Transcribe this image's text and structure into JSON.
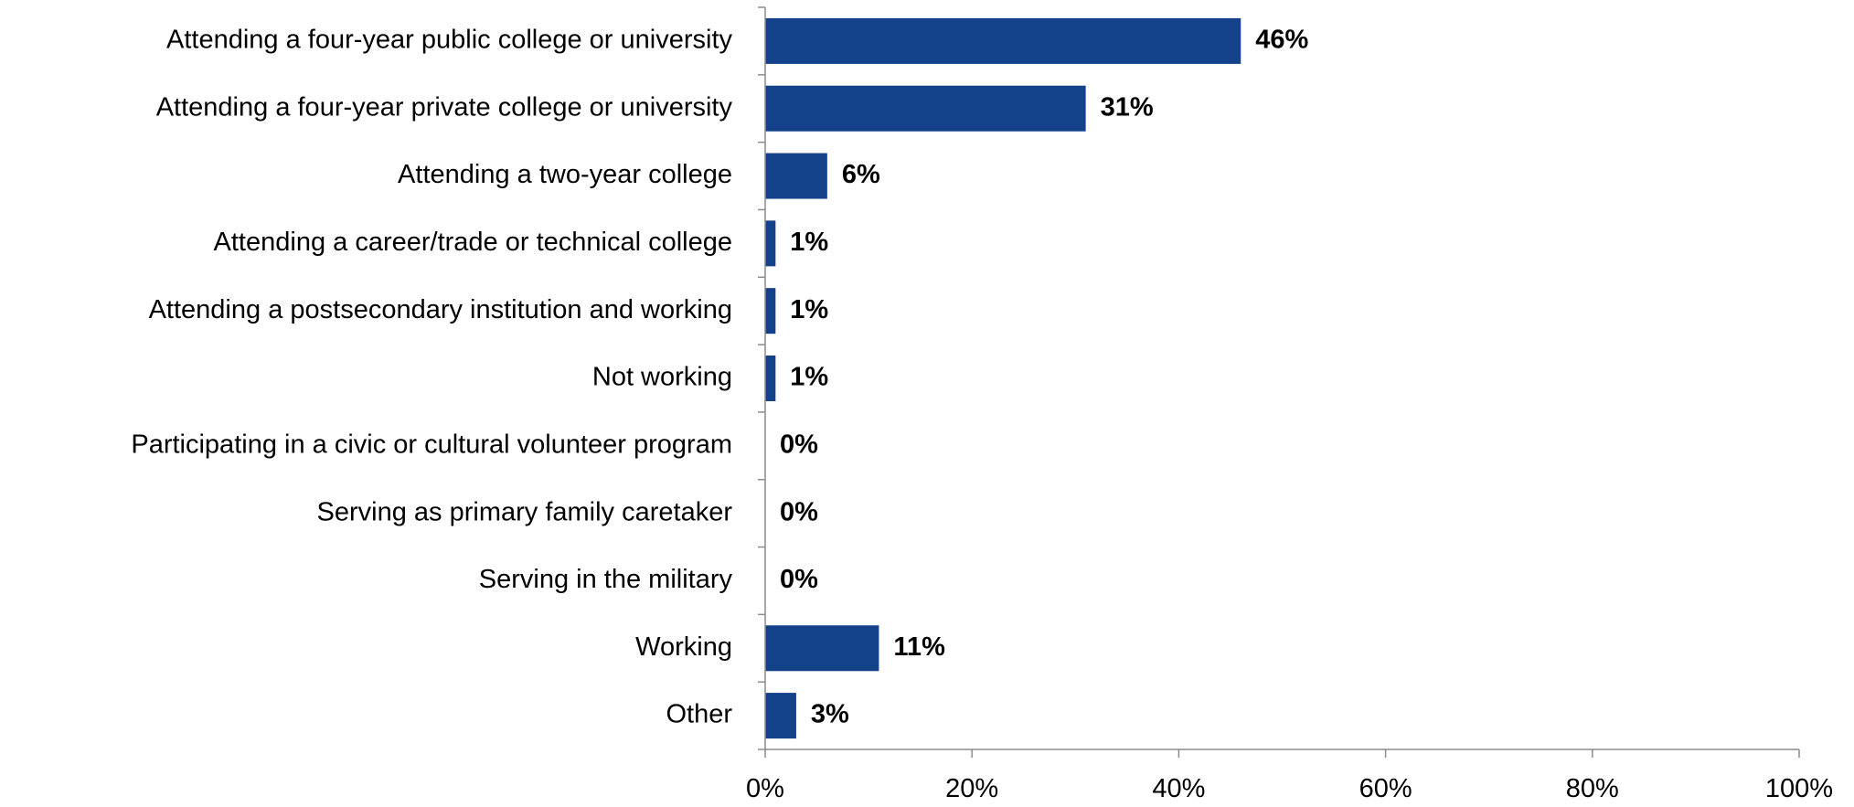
{
  "chart_data": {
    "type": "bar",
    "orientation": "horizontal",
    "categories": [
      "Attending a four-year public college or university",
      "Attending a four-year private college or university",
      "Attending a two-year college",
      "Attending a career/trade or technical college",
      "Attending a postsecondary institution and working",
      "Not working",
      "Participating in a civic or cultural volunteer program",
      "Serving as primary family caretaker",
      "Serving in the military",
      "Working",
      "Other"
    ],
    "values": [
      46,
      31,
      6,
      1,
      1,
      1,
      0,
      0,
      0,
      11,
      3
    ],
    "data_labels": [
      "46%",
      "31%",
      "6%",
      "1%",
      "1%",
      "1%",
      "0%",
      "0%",
      "0%",
      "11%",
      "3%"
    ],
    "xlim": [
      0,
      100
    ],
    "x_ticks": [
      "0%",
      "20%",
      "40%",
      "60%",
      "80%",
      "100%"
    ],
    "grid": false,
    "colors": {
      "bar": "#13428a",
      "axis": "#8c8c8c"
    }
  }
}
